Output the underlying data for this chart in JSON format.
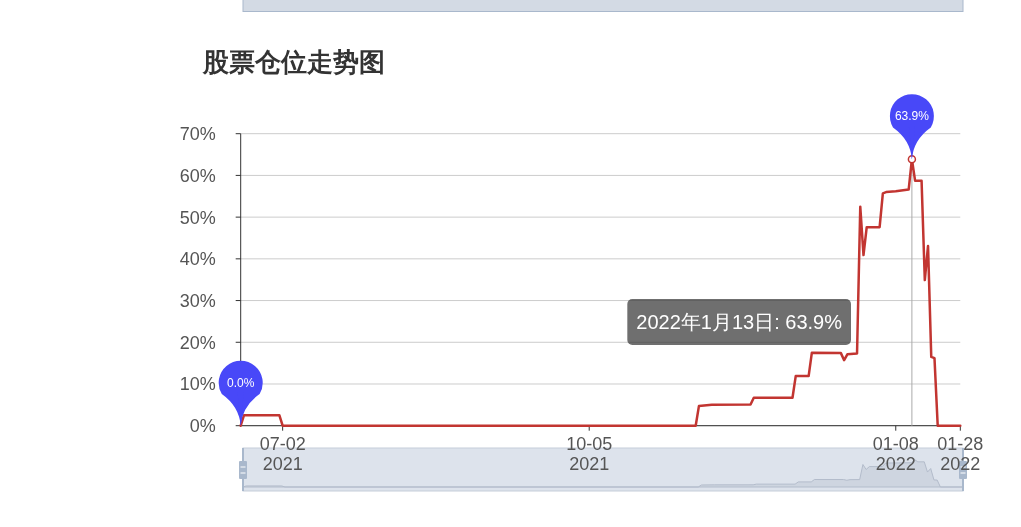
{
  "chart_data": {
    "type": "line",
    "title": "股票仓位走势图",
    "x": [
      "2021-06-19",
      "2021-06-20",
      "2021-07-01",
      "2021-07-02",
      "2021-11-07",
      "2021-11-08",
      "2021-11-12",
      "2021-11-24",
      "2021-11-25",
      "2021-12-07",
      "2021-12-08",
      "2021-12-12",
      "2021-12-13",
      "2021-12-22",
      "2021-12-23",
      "2021-12-24",
      "2021-12-27",
      "2021-12-28",
      "2021-12-29",
      "2021-12-30",
      "2022-01-03",
      "2022-01-04",
      "2022-01-05",
      "2022-01-08",
      "2022-01-12",
      "2022-01-13",
      "2022-01-14",
      "2022-01-16",
      "2022-01-17",
      "2022-01-18",
      "2022-01-19",
      "2022-01-20",
      "2022-01-21",
      "2022-01-28"
    ],
    "series": [
      {
        "color": "#c23531",
        "values": [
          0,
          2.5,
          2.5,
          0,
          0,
          4.7,
          5.0,
          5.1,
          6.7,
          6.7,
          11.9,
          11.9,
          17.5,
          17.4,
          15.7,
          17.1,
          17.3,
          52.5,
          40.9,
          47.6,
          47.6,
          55.7,
          56.0,
          56.2,
          56.6,
          63.9,
          58.7,
          58.7,
          34.9,
          43.1,
          16.5,
          16.2,
          0,
          0
        ]
      }
    ],
    "xlim": [
      "2021-06-19",
      "2022-01-28"
    ],
    "xticks": [
      {
        "value": "2021-07-02",
        "label": "07-02\n2021"
      },
      {
        "value": "2021-10-05",
        "label": "10-05\n2021"
      },
      {
        "value": "2022-01-08",
        "label": "01-08\n2022"
      },
      {
        "value": "2022-01-28",
        "label": "01-28\n2022"
      }
    ],
    "ylim": [
      0,
      70
    ],
    "yticks": [
      {
        "value": 0,
        "label": "0%"
      },
      {
        "value": 10,
        "label": "10%"
      },
      {
        "value": 20,
        "label": "20%"
      },
      {
        "value": 30,
        "label": "30%"
      },
      {
        "value": 40,
        "label": "40%"
      },
      {
        "value": 50,
        "label": "50%"
      },
      {
        "value": 60,
        "label": "60%"
      },
      {
        "value": 70,
        "label": "70%"
      }
    ],
    "grid": "y",
    "marker": "none",
    "line_style": "solid",
    "ref_lines": [
      {
        "axis": "x",
        "value": "2022-01-13",
        "color": "#aaaaaa"
      }
    ],
    "annotations": [
      {
        "text": "63.9%",
        "x": "2022-01-13",
        "y": 63.9
      },
      {
        "text": "0.0%",
        "x": "2021-06-19",
        "y": 0
      },
      "2022年1月13日: 63.9%"
    ]
  }
}
